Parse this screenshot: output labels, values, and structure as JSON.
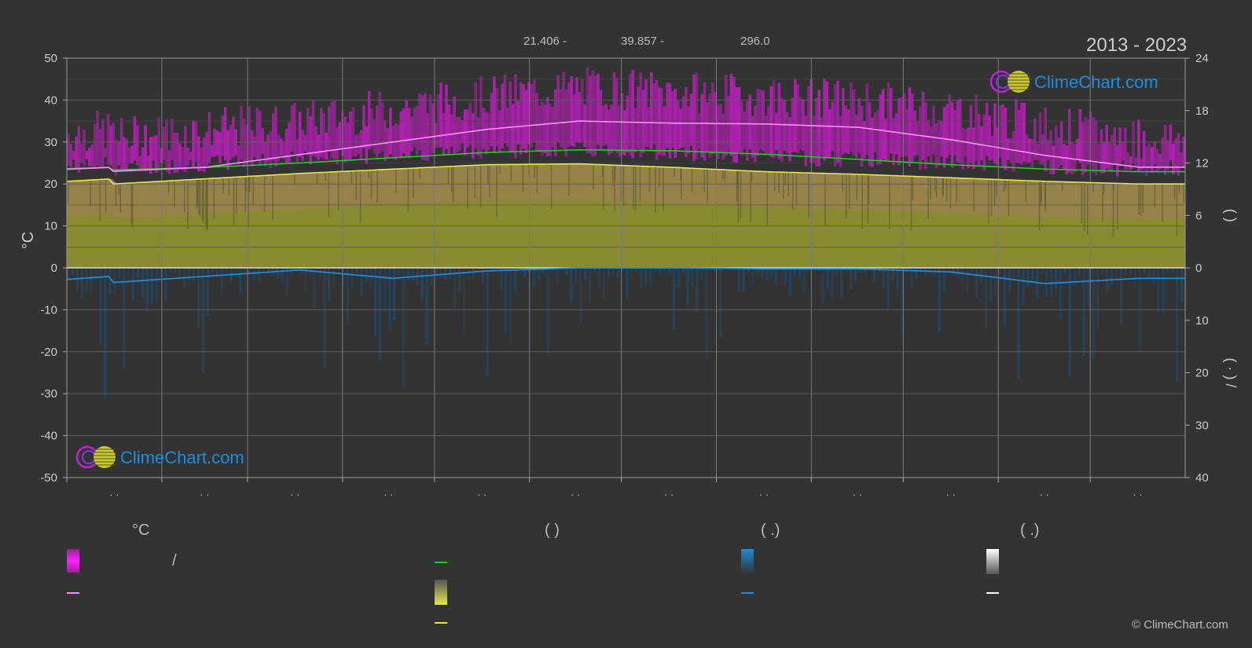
{
  "header": {
    "coords_lat": "21.406 -",
    "coords_lon": "39.857 -",
    "elevation": "296.0",
    "years": "2013 - 2023"
  },
  "brand": {
    "name": "ClimeChart.com",
    "copyright": "© ClimeChart.com"
  },
  "colors": {
    "background": "#333333",
    "day_max_band": "#d01cd0",
    "sunshine_fill": "#9a9a34",
    "daylight_line": "#22cc22",
    "sunshine_line": "#e6e64a",
    "avg_temp_line": "#ff8cff",
    "precip": "#1f8ad8",
    "brand_blue": "#1a8fe0"
  },
  "legend": {
    "temp_header": "°C",
    "sun_header": "(          )",
    "rain_header": "(    .)",
    "snow_header": "(    .)",
    "slash": "/"
  },
  "chart_data": {
    "type": "area",
    "x_tick_labels": [
      "· ·",
      "· ·",
      "· ·",
      "· ·",
      "· ·",
      "· ·",
      "· ·",
      "· ·",
      "· ·",
      "· ·",
      "· ·",
      "· ·"
    ],
    "y_left_label": "°C",
    "y_left_ticks": [
      50,
      40,
      30,
      20,
      10,
      0,
      -10,
      -20,
      -30,
      -40,
      -50
    ],
    "y_left_range": [
      -50,
      50
    ],
    "y_right_upper_ticks": [
      24,
      18,
      12,
      6,
      0
    ],
    "y_right_upper_range": [
      0,
      24
    ],
    "y_right_lower_ticks": [
      10,
      20,
      30,
      40
    ],
    "y_right_lower_range": [
      0,
      40
    ],
    "y_right_upper_label": "(     )",
    "y_right_lower_label": "(  ·  )   /",
    "months": 12,
    "series": [
      {
        "key": "daylight_hours",
        "axis": "right_upper",
        "values": [
          11.2,
          11.5,
          12.0,
          12.6,
          13.2,
          13.5,
          13.4,
          13.0,
          12.4,
          11.8,
          11.3,
          11.0
        ]
      },
      {
        "key": "sunshine_hours",
        "axis": "right_upper",
        "values": [
          9.6,
          10.2,
          10.8,
          11.3,
          11.8,
          11.9,
          11.5,
          11.0,
          10.7,
          10.3,
          9.9,
          9.6
        ]
      },
      {
        "key": "avg_max_temp",
        "axis": "left",
        "values": [
          23,
          24,
          27,
          30,
          33,
          35,
          34.5,
          34.3,
          33.5,
          30.5,
          26.8,
          24
        ]
      },
      {
        "key": "daily_max_band_top",
        "axis": "left",
        "values": [
          31,
          33,
          35,
          38,
          41,
          43,
          42,
          41,
          40,
          38,
          34,
          31
        ]
      },
      {
        "key": "precip_mm",
        "axis": "right_lower",
        "values": [
          2.8,
          1.6,
          0.4,
          2.0,
          0.6,
          0.0,
          0.0,
          0.2,
          0.2,
          0.8,
          3.0,
          2.0
        ]
      }
    ]
  }
}
